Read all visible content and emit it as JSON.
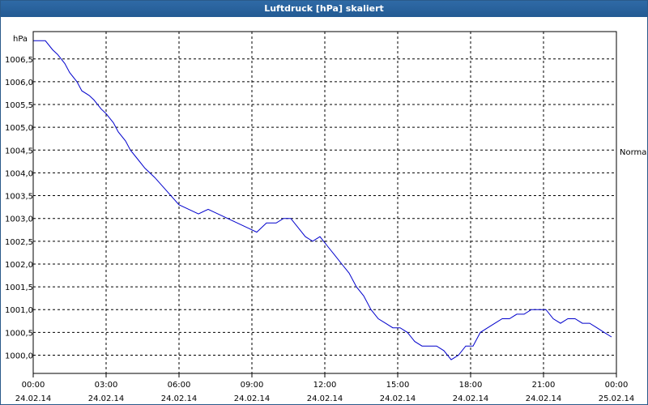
{
  "window": {
    "title": "Luftdruck [hPa] skaliert"
  },
  "chart_data": {
    "type": "line",
    "title": "Luftdruck [hPa] skaliert",
    "ylabel": "hPa",
    "right_label": "Normal",
    "ylim": [
      999.6,
      1007.1
    ],
    "y_ticks": [
      {
        "value": 1000.0,
        "label": "1000,0"
      },
      {
        "value": 1000.5,
        "label": "1000,5"
      },
      {
        "value": 1001.0,
        "label": "1001,0"
      },
      {
        "value": 1001.5,
        "label": "1001,5"
      },
      {
        "value": 1002.0,
        "label": "1002,0"
      },
      {
        "value": 1002.5,
        "label": "1002,5"
      },
      {
        "value": 1003.0,
        "label": "1003,0"
      },
      {
        "value": 1003.5,
        "label": "1003,5"
      },
      {
        "value": 1004.0,
        "label": "1004,0"
      },
      {
        "value": 1004.5,
        "label": "1004,5"
      },
      {
        "value": 1005.0,
        "label": "1005,0"
      },
      {
        "value": 1005.5,
        "label": "1005,5"
      },
      {
        "value": 1006.0,
        "label": "1006,0"
      },
      {
        "value": 1006.5,
        "label": "1006,5"
      }
    ],
    "x_ticks": [
      {
        "value": 0,
        "time": "00:00",
        "date": "24.02.14"
      },
      {
        "value": 3,
        "time": "03:00",
        "date": "24.02.14"
      },
      {
        "value": 6,
        "time": "06:00",
        "date": "24.02.14"
      },
      {
        "value": 9,
        "time": "09:00",
        "date": "24.02.14"
      },
      {
        "value": 12,
        "time": "12:00",
        "date": "24.02.14"
      },
      {
        "value": 15,
        "time": "15:00",
        "date": "24.02.14"
      },
      {
        "value": 18,
        "time": "18:00",
        "date": "24.02.14"
      },
      {
        "value": 21,
        "time": "21:00",
        "date": "24.02.14"
      },
      {
        "value": 24,
        "time": "00:00",
        "date": "25.02.14"
      }
    ],
    "xlim": [
      0,
      24
    ],
    "grid": true,
    "line_color": "#0000cc",
    "x_unit": "hours since 24.02.14 00:00",
    "series": [
      {
        "x": [
          0,
          0.5,
          0.8,
          1.0,
          1.3,
          1.5,
          1.8,
          2.0,
          2.3,
          2.5,
          2.8,
          3.0,
          3.3,
          3.5,
          3.8,
          4.0,
          4.3,
          4.6,
          5.0,
          5.5,
          6.0,
          6.4,
          6.8,
          7.2,
          7.6,
          8.0,
          8.4,
          8.8,
          9.2,
          9.6,
          10.0,
          10.3,
          10.6,
          10.9,
          11.2,
          11.5,
          11.8,
          12.1,
          12.4,
          12.7,
          13.0,
          13.3,
          13.6,
          13.9,
          14.2,
          14.5,
          14.8,
          15.1,
          15.4,
          15.7,
          16.0,
          16.3,
          16.6,
          16.9,
          17.2,
          17.5,
          17.8,
          18.1,
          18.4,
          18.7,
          19.0,
          19.3,
          19.6,
          19.9,
          20.2,
          20.5,
          20.8,
          21.1,
          21.4,
          21.7,
          22.0,
          22.3,
          22.6,
          22.9,
          23.2,
          23.5,
          23.8
        ],
        "values": [
          1006.9,
          1006.9,
          1006.7,
          1006.6,
          1006.4,
          1006.2,
          1006.0,
          1005.8,
          1005.7,
          1005.6,
          1005.4,
          1005.3,
          1005.1,
          1004.9,
          1004.7,
          1004.5,
          1004.3,
          1004.1,
          1003.9,
          1003.6,
          1003.3,
          1003.2,
          1003.1,
          1003.2,
          1003.1,
          1003.0,
          1002.9,
          1002.8,
          1002.7,
          1002.9,
          1002.9,
          1003.0,
          1003.0,
          1002.8,
          1002.6,
          1002.5,
          1002.6,
          1002.4,
          1002.2,
          1002.0,
          1001.8,
          1001.5,
          1001.3,
          1001.0,
          1000.8,
          1000.7,
          1000.6,
          1000.6,
          1000.5,
          1000.3,
          1000.2,
          1000.2,
          1000.2,
          1000.1,
          999.9,
          1000.0,
          1000.2,
          1000.2,
          1000.5,
          1000.6,
          1000.7,
          1000.8,
          1000.8,
          1000.9,
          1000.9,
          1001.0,
          1001.0,
          1001.0,
          1000.8,
          1000.7,
          1000.8,
          1000.8,
          1000.7,
          1000.7,
          1000.6,
          1000.5,
          1000.4
        ]
      }
    ]
  }
}
